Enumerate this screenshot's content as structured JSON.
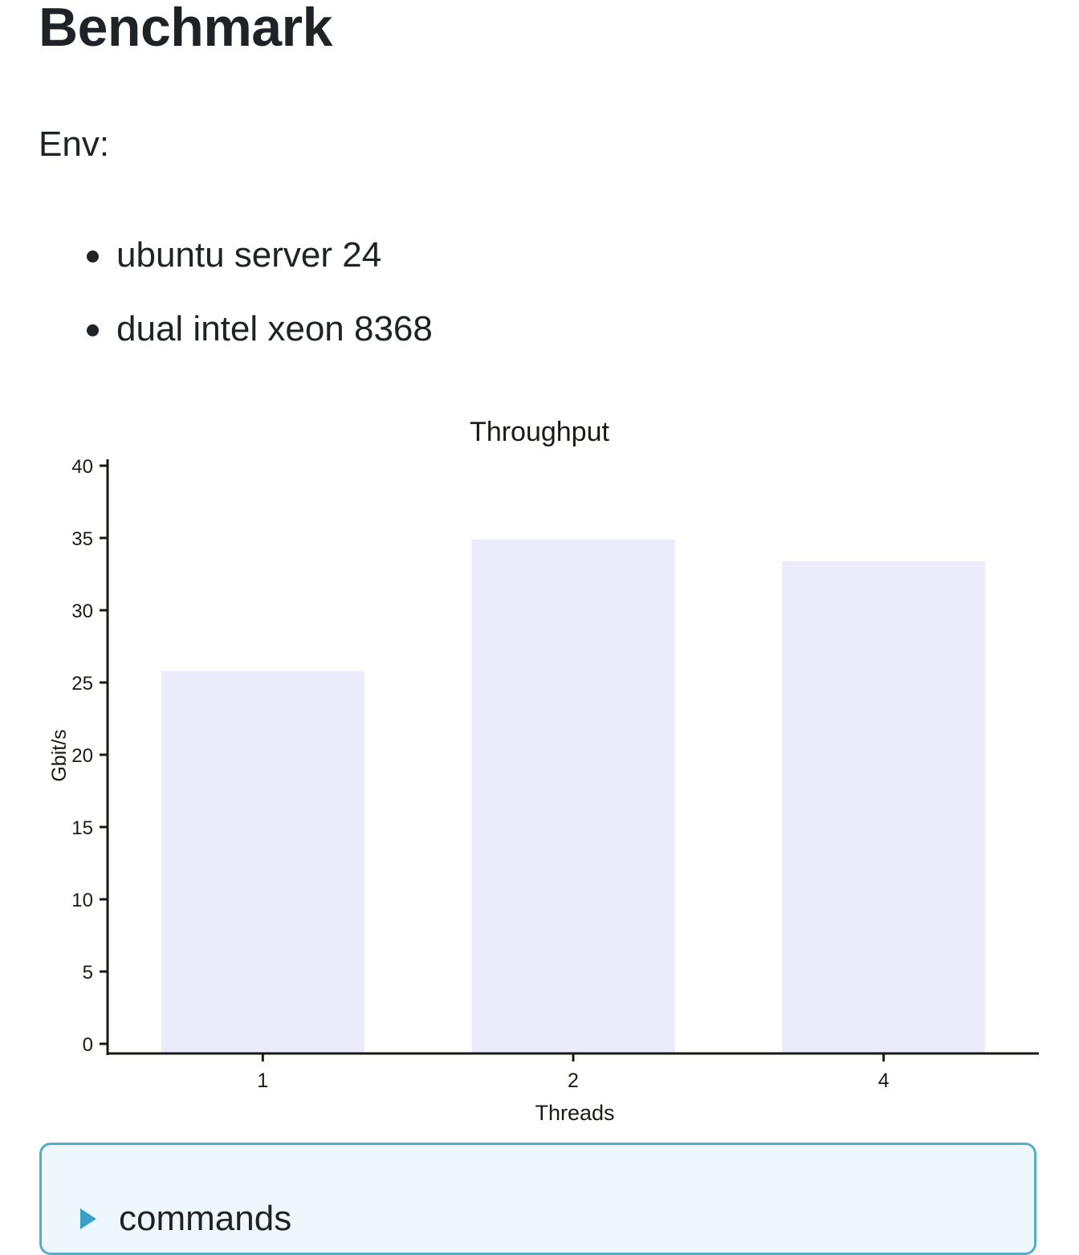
{
  "page": {
    "title": "Benchmark",
    "env_label": "Env:",
    "env_items": [
      "ubuntu server 24",
      "dual intel xeon 8368"
    ]
  },
  "details": {
    "summary_label": "commands",
    "accent_color": "#54aeca"
  },
  "chart_data": {
    "type": "bar",
    "title": "Throughput",
    "xlabel": "Threads",
    "ylabel": "Gbit/s",
    "categories": [
      "1",
      "2",
      "4"
    ],
    "values": [
      25.8,
      34.9,
      33.4
    ],
    "ylim": [
      0,
      40
    ],
    "yticks": [
      0,
      5,
      10,
      15,
      20,
      25,
      30,
      35,
      40
    ],
    "bar_color": "#ebebfc",
    "grid": false,
    "legend": "none"
  }
}
